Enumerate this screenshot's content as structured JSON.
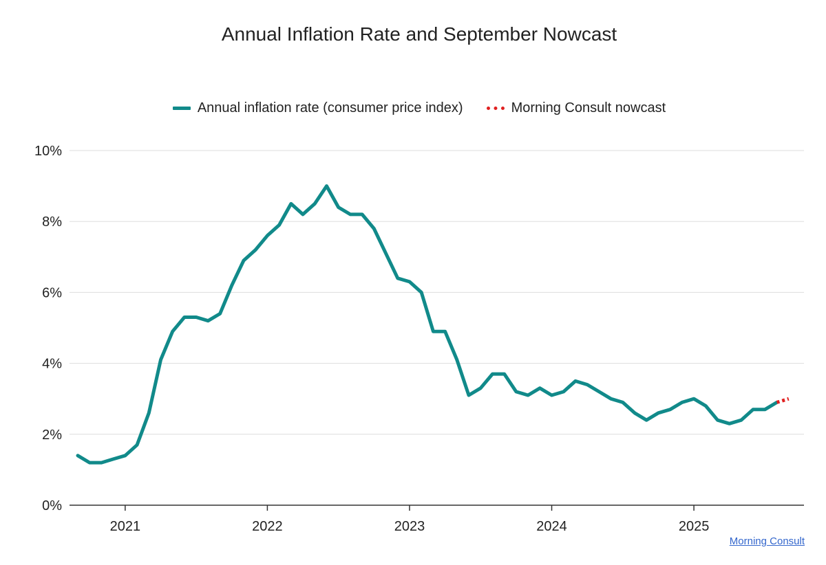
{
  "chart_data": {
    "type": "line",
    "title": "Annual Inflation Rate and September Nowcast",
    "xlabel": "",
    "ylabel": "",
    "ylim": [
      0,
      10
    ],
    "y_ticks": [
      "0%",
      "2%",
      "4%",
      "6%",
      "8%",
      "10%"
    ],
    "y_tick_values": [
      0,
      2,
      4,
      6,
      8,
      10
    ],
    "x_ticks": [
      "2021",
      "2022",
      "2023",
      "2024",
      "2025"
    ],
    "x_tick_months": [
      "2021-01",
      "2022-01",
      "2023-01",
      "2024-01",
      "2025-01"
    ],
    "xlim": [
      "2020-09",
      "2025-10"
    ],
    "grid": "horizontal",
    "legend_placement": "top-center",
    "series": [
      {
        "name": "Annual inflation rate (consumer price index)",
        "color": "#118a8a",
        "style": "solid",
        "x": [
          "2020-09",
          "2020-10",
          "2020-11",
          "2020-12",
          "2021-01",
          "2021-02",
          "2021-03",
          "2021-04",
          "2021-05",
          "2021-06",
          "2021-07",
          "2021-08",
          "2021-09",
          "2021-10",
          "2021-11",
          "2021-12",
          "2022-01",
          "2022-02",
          "2022-03",
          "2022-04",
          "2022-05",
          "2022-06",
          "2022-07",
          "2022-08",
          "2022-09",
          "2022-10",
          "2022-11",
          "2022-12",
          "2023-01",
          "2023-02",
          "2023-03",
          "2023-04",
          "2023-05",
          "2023-06",
          "2023-07",
          "2023-08",
          "2023-09",
          "2023-10",
          "2023-11",
          "2023-12",
          "2024-01",
          "2024-02",
          "2024-03",
          "2024-04",
          "2024-05",
          "2024-06",
          "2024-07",
          "2024-08",
          "2024-09",
          "2024-10",
          "2024-11",
          "2024-12",
          "2025-01",
          "2025-02",
          "2025-03",
          "2025-04",
          "2025-05",
          "2025-06",
          "2025-07",
          "2025-08"
        ],
        "values": [
          1.4,
          1.2,
          1.2,
          1.3,
          1.4,
          1.7,
          2.6,
          4.1,
          4.9,
          5.3,
          5.3,
          5.2,
          5.4,
          6.2,
          6.9,
          7.2,
          7.6,
          7.9,
          8.5,
          8.2,
          8.5,
          9.0,
          8.4,
          8.2,
          8.2,
          7.8,
          7.1,
          6.4,
          6.3,
          6.0,
          4.9,
          4.9,
          4.1,
          3.1,
          3.3,
          3.7,
          3.7,
          3.2,
          3.1,
          3.3,
          3.1,
          3.2,
          3.5,
          3.4,
          3.2,
          3.0,
          2.9,
          2.6,
          2.4,
          2.6,
          2.7,
          2.9,
          3.0,
          2.8,
          2.4,
          2.3,
          2.4,
          2.7,
          2.7,
          2.9
        ]
      },
      {
        "name": "Morning Consult nowcast",
        "color": "#e02020",
        "style": "dotted",
        "x": [
          "2025-08",
          "2025-09"
        ],
        "values": [
          2.9,
          3.0
        ]
      }
    ]
  },
  "source": {
    "label": "Morning Consult"
  }
}
